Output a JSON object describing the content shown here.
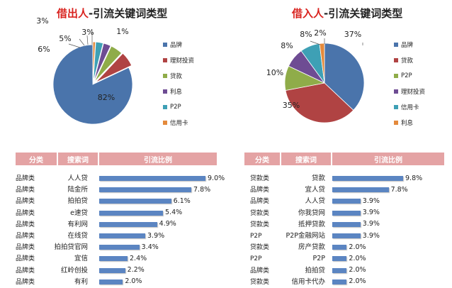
{
  "chart_data": [
    {
      "type": "pie",
      "title": {
        "highlight": "借出人",
        "rest": "-引流关键词类型"
      },
      "slices": [
        {
          "label": "品牌",
          "value": 82,
          "label_text": "82%",
          "color": "#4a74ab"
        },
        {
          "label": "理财投资",
          "value": 6,
          "label_text": "6%",
          "color": "#b04343"
        },
        {
          "label": "贷款",
          "value": 5,
          "label_text": "5%",
          "color": "#8fac49"
        },
        {
          "label": "利息",
          "value": 3,
          "label_text": "3%",
          "color": "#6e4c93"
        },
        {
          "label": "P2P",
          "value": 3,
          "label_text": "3%",
          "color": "#3ea0b5"
        },
        {
          "label": "信用卡",
          "value": 1,
          "label_text": "1%",
          "color": "#e48a3c"
        }
      ],
      "legend_position": "right"
    },
    {
      "type": "pie",
      "title": {
        "highlight": "借入人",
        "rest": "-引流关键词类型"
      },
      "slices": [
        {
          "label": "品牌",
          "value": 37,
          "label_text": "37%",
          "color": "#4a74ab"
        },
        {
          "label": "贷款",
          "value": 35,
          "label_text": "35%",
          "color": "#b04343"
        },
        {
          "label": "P2P",
          "value": 10,
          "label_text": "10%",
          "color": "#8fac49"
        },
        {
          "label": "理财投资",
          "value": 8,
          "label_text": "8%",
          "color": "#6e4c93"
        },
        {
          "label": "信用卡",
          "value": 8,
          "label_text": "8%",
          "color": "#3ea0b5"
        },
        {
          "label": "利息",
          "value": 2,
          "label_text": "2%",
          "color": "#e48a3c"
        }
      ],
      "legend_position": "right"
    },
    {
      "type": "bar",
      "headers": {
        "category": "分类",
        "term": "搜索词",
        "ratio": "引流比例"
      },
      "rows": [
        {
          "category": "品牌类",
          "term": "人人贷",
          "value": 9.0,
          "label": "9.0%"
        },
        {
          "category": "品牌类",
          "term": "陆金所",
          "value": 7.8,
          "label": "7.8%"
        },
        {
          "category": "品牌类",
          "term": "拍拍贷",
          "value": 6.1,
          "label": "6.1%"
        },
        {
          "category": "品牌类",
          "term": "e速贷",
          "value": 5.4,
          "label": "5.4%"
        },
        {
          "category": "品牌类",
          "term": "有利网",
          "value": 4.9,
          "label": "4.9%"
        },
        {
          "category": "品牌类",
          "term": "在线贷",
          "value": 3.9,
          "label": "3.9%"
        },
        {
          "category": "品牌类",
          "term": "拍拍贷官网",
          "value": 3.4,
          "label": "3.4%"
        },
        {
          "category": "品牌类",
          "term": "宜信",
          "value": 2.4,
          "label": "2.4%"
        },
        {
          "category": "品牌类",
          "term": "红岭创投",
          "value": 2.2,
          "label": "2.2%"
        },
        {
          "category": "品牌类",
          "term": "有利",
          "value": 2.0,
          "label": "2.0%"
        }
      ]
    },
    {
      "type": "bar",
      "headers": {
        "category": "分类",
        "term": "搜索词",
        "ratio": "引流比例"
      },
      "rows": [
        {
          "category": "贷款类",
          "term": "贷款",
          "value": 9.8,
          "label": "9.8%"
        },
        {
          "category": "品牌类",
          "term": "宜人贷",
          "value": 7.8,
          "label": "7.8%"
        },
        {
          "category": "品牌类",
          "term": "人人贷",
          "value": 3.9,
          "label": "3.9%"
        },
        {
          "category": "贷款类",
          "term": "你我贷网",
          "value": 3.9,
          "label": "3.9%"
        },
        {
          "category": "贷款类",
          "term": "抵押贷款",
          "value": 3.9,
          "label": "3.9%"
        },
        {
          "category": "P2P",
          "term": "P2P金融网站",
          "value": 3.9,
          "label": "3.9%"
        },
        {
          "category": "贷款类",
          "term": "房产贷款",
          "value": 2.0,
          "label": "2.0%"
        },
        {
          "category": "P2P",
          "term": "P2P",
          "value": 2.0,
          "label": "2.0%"
        },
        {
          "category": "品牌类",
          "term": "拍拍贷",
          "value": 2.0,
          "label": "2.0%"
        },
        {
          "category": "贷款类",
          "term": "信用卡代办",
          "value": 2.0,
          "label": "2.0%"
        }
      ]
    }
  ]
}
